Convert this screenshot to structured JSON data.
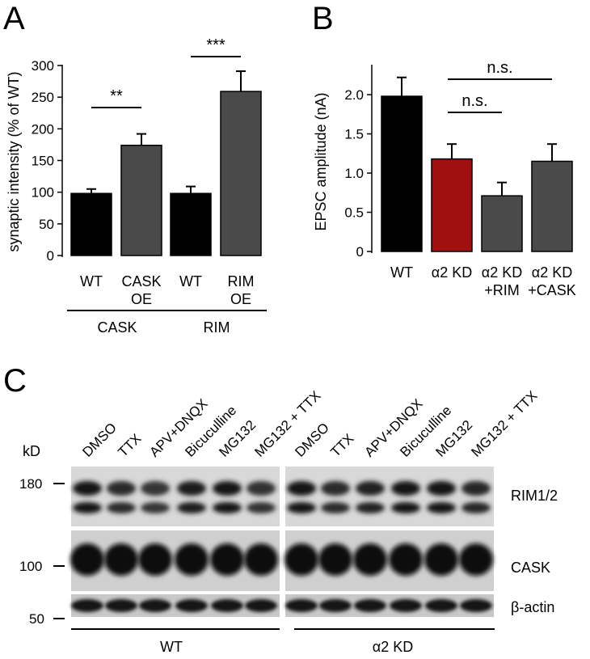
{
  "panels": {
    "a": "A",
    "b": "B",
    "c": "C"
  },
  "chart_data": [
    {
      "type": "bar",
      "ylabel": "synaptic intensity (% of WT)",
      "ylim": [
        0,
        300
      ],
      "yticks": [
        "0",
        "50",
        "100",
        "150",
        "200",
        "250",
        "300"
      ],
      "categories": [
        "WT",
        "CASK OE",
        "WT",
        "RIM OE"
      ],
      "category_lines": [
        [
          "WT"
        ],
        [
          "CASK",
          "OE"
        ],
        [
          "WT"
        ],
        [
          "RIM",
          "OE"
        ]
      ],
      "values": [
        98,
        174,
        98,
        259
      ],
      "errors": [
        7,
        18,
        11,
        32
      ],
      "colors": [
        "#000000",
        "#4a4a4a",
        "#000000",
        "#4a4a4a"
      ],
      "groups": [
        {
          "label": "CASK",
          "from": 0,
          "to": 1
        },
        {
          "label": "RIM",
          "from": 2,
          "to": 3
        }
      ],
      "significance": [
        {
          "from": 0,
          "to": 1,
          "label": "**"
        },
        {
          "from": 2,
          "to": 3,
          "label": "***"
        }
      ]
    },
    {
      "type": "bar",
      "ylabel": "EPSC amplitude (nA)",
      "ylim": [
        0,
        2.3
      ],
      "yticks": [
        "0",
        "0.5",
        "1.0",
        "1.5",
        "2.0"
      ],
      "categories": [
        "WT",
        "α2 KD",
        "α2 KD +RIM",
        "α2 KD +CASK"
      ],
      "category_lines": [
        [
          "WT"
        ],
        [
          "α2 KD"
        ],
        [
          "α2 KD",
          "+RIM"
        ],
        [
          "α2 KD",
          "+CASK"
        ]
      ],
      "values": [
        1.98,
        1.18,
        0.71,
        1.15
      ],
      "errors": [
        0.24,
        0.19,
        0.17,
        0.22
      ],
      "colors": [
        "#000000",
        "#a11010",
        "#4a4a4a",
        "#4a4a4a"
      ],
      "significance": [
        {
          "from": 1,
          "to": 2,
          "label": "n.s."
        },
        {
          "from": 1,
          "to": 3,
          "label": "n.s."
        }
      ]
    }
  ],
  "western_blot": {
    "unit_label": "kD",
    "markers": [
      "180",
      "100",
      "50"
    ],
    "lanes": [
      "DMSO",
      "TTX",
      "APV+DNQX",
      "Bicuculline",
      "MG132",
      "MG132 + TTX",
      "DMSO",
      "TTX",
      "APV+DNQX",
      "Bicuculline",
      "MG132",
      "MG132 + TTX"
    ],
    "blots": [
      "RIM1/2",
      "CASK",
      "β-actin"
    ],
    "conditions": [
      "WT",
      "α2 KD"
    ]
  }
}
